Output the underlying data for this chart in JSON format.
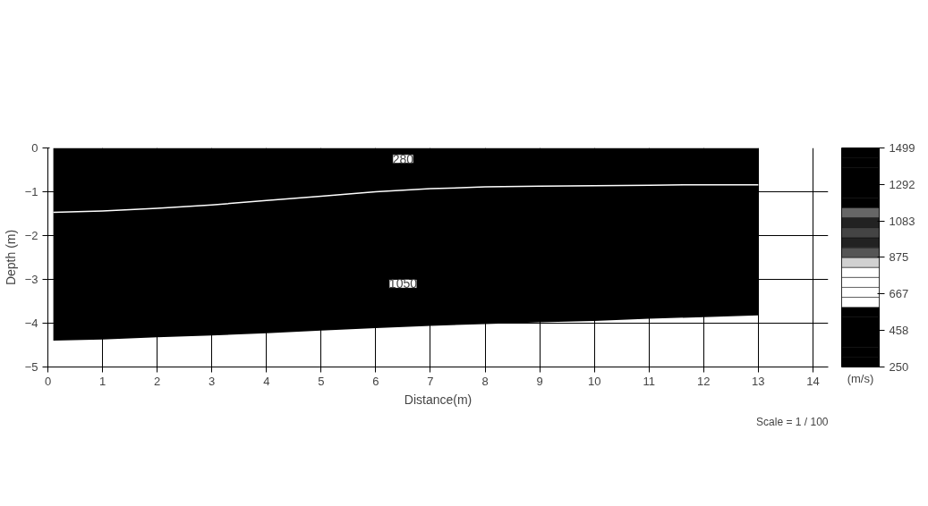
{
  "chart_data": {
    "type": "area",
    "stacked": true,
    "xlabel": "Distance(m)",
    "ylabel": "Depth (m)",
    "clabel": "(m/s)",
    "x": [
      0.1,
      1,
      2,
      3,
      4,
      5,
      6,
      7,
      8,
      9,
      10,
      11,
      12,
      13
    ],
    "series": [
      {
        "color": "#000000",
        "values": [
          -1.47,
          -1.44,
          -1.38,
          -1.3,
          -1.2,
          -1.1,
          -1.0,
          -0.93,
          -0.89,
          -0.87,
          -0.86,
          -0.85,
          -0.84,
          -0.84
        ]
      },
      {
        "color": "#000000",
        "values": [
          -2.93,
          -2.93,
          -2.94,
          -2.98,
          -3.03,
          -3.07,
          -3.11,
          -3.13,
          -3.13,
          -3.11,
          -3.09,
          -3.05,
          -3.02,
          -2.98
        ]
      }
    ],
    "annotations": [
      {
        "text": "280",
        "x": 6.5,
        "y": -0.25
      },
      {
        "text": "1050",
        "x": 6.5,
        "y": -3.1
      },
      "Scale = 1 / 100"
    ],
    "xlim": [
      0,
      14.28
    ],
    "ylim": [
      -5,
      0
    ],
    "xticks": [
      0,
      1,
      2,
      3,
      4,
      5,
      6,
      7,
      8,
      9,
      10,
      11,
      12,
      13,
      14
    ],
    "yticks": [
      0,
      -1,
      -2,
      -3,
      -4,
      -5
    ],
    "clim": [
      250,
      1499
    ],
    "cticks": [
      250,
      458,
      667,
      875,
      1083,
      1292,
      1499
    ],
    "grid": true
  }
}
